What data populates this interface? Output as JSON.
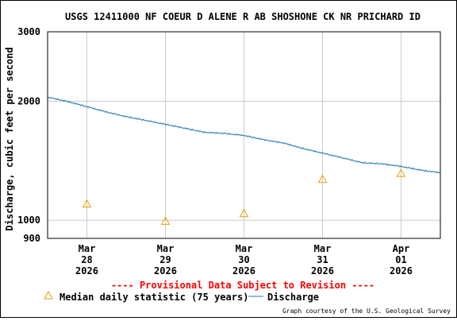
{
  "chart_data": {
    "type": "line",
    "title": "USGS 12411000 NF COEUR D ALENE R AB SHOSHONE CK NR PRICHARD ID",
    "ylabel": "Discharge, cubic feet per second",
    "xlabel": "",
    "y_scale": "log",
    "ylim": [
      900,
      3000
    ],
    "y_ticks": [
      {
        "value": 900,
        "label": "900"
      },
      {
        "value": 1000,
        "label": "1000"
      },
      {
        "value": 2000,
        "label": "2000"
      },
      {
        "value": 3000,
        "label": "3000"
      }
    ],
    "x_range": [
      "2026-03-27 12:00",
      "2026-04-01 12:00"
    ],
    "x_ticks": [
      {
        "date": "2026-03-28",
        "month": "Mar",
        "day": "28",
        "year": "2026"
      },
      {
        "date": "2026-03-29",
        "month": "Mar",
        "day": "29",
        "year": "2026"
      },
      {
        "date": "2026-03-30",
        "month": "Mar",
        "day": "30",
        "year": "2026"
      },
      {
        "date": "2026-03-31",
        "month": "Mar",
        "day": "31",
        "year": "2026"
      },
      {
        "date": "2026-04-01",
        "month": "Apr",
        "day": "01",
        "year": "2026"
      }
    ],
    "series": [
      {
        "name": "Discharge",
        "color": "#1f77b4",
        "points": [
          {
            "x": "2026-03-27 12:00",
            "y": 2050
          },
          {
            "x": "2026-03-27 18:00",
            "y": 2000
          },
          {
            "x": "2026-03-28 00:00",
            "y": 1940
          },
          {
            "x": "2026-03-28 06:00",
            "y": 1880
          },
          {
            "x": "2026-03-28 12:00",
            "y": 1830
          },
          {
            "x": "2026-03-28 18:00",
            "y": 1790
          },
          {
            "x": "2026-03-29 00:00",
            "y": 1750
          },
          {
            "x": "2026-03-29 06:00",
            "y": 1710
          },
          {
            "x": "2026-03-29 12:00",
            "y": 1670
          },
          {
            "x": "2026-03-29 18:00",
            "y": 1660
          },
          {
            "x": "2026-03-30 00:00",
            "y": 1640
          },
          {
            "x": "2026-03-30 06:00",
            "y": 1600
          },
          {
            "x": "2026-03-30 12:00",
            "y": 1570
          },
          {
            "x": "2026-03-30 18:00",
            "y": 1520
          },
          {
            "x": "2026-03-31 00:00",
            "y": 1480
          },
          {
            "x": "2026-03-31 06:00",
            "y": 1440
          },
          {
            "x": "2026-03-31 12:00",
            "y": 1400
          },
          {
            "x": "2026-03-31 18:00",
            "y": 1390
          },
          {
            "x": "2026-04-01 00:00",
            "y": 1370
          },
          {
            "x": "2026-04-01 06:00",
            "y": 1340
          },
          {
            "x": "2026-04-01 12:00",
            "y": 1320
          }
        ]
      },
      {
        "name": "Median daily statistic (75 years)",
        "color": "#e8a000",
        "marker": "triangle",
        "points": [
          {
            "x": "2026-03-28 00:00",
            "y": 1100
          },
          {
            "x": "2026-03-29 00:00",
            "y": 995
          },
          {
            "x": "2026-03-30 00:00",
            "y": 1040
          },
          {
            "x": "2026-03-31 00:00",
            "y": 1270
          },
          {
            "x": "2026-04-01 00:00",
            "y": 1315
          }
        ]
      }
    ],
    "grid": true,
    "legend_position": "bottom"
  },
  "notice": "---- Provisional Data Subject to Revision ----",
  "notice_color": "#ff0000",
  "legend": {
    "median_label": "Median daily statistic (75 years)",
    "discharge_label": "Discharge"
  },
  "credit": "Graph courtesy of the U.S. Geological Survey"
}
